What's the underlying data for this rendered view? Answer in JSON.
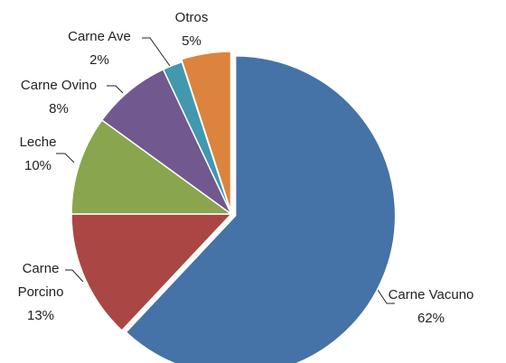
{
  "chart_data": {
    "type": "pie",
    "categories": [
      "Carne Vacuno",
      "Carne Porcino",
      "Leche",
      "Carne Ovino",
      "Carne Ave",
      "Otros"
    ],
    "values": [
      62,
      13,
      10,
      8,
      2,
      5
    ],
    "value_labels": [
      "62%",
      "13%",
      "10%",
      "8%",
      "2%",
      "5%"
    ],
    "colors": [
      "#4572a7",
      "#aa4643",
      "#89a54e",
      "#71588f",
      "#4198af",
      "#db843d"
    ]
  }
}
